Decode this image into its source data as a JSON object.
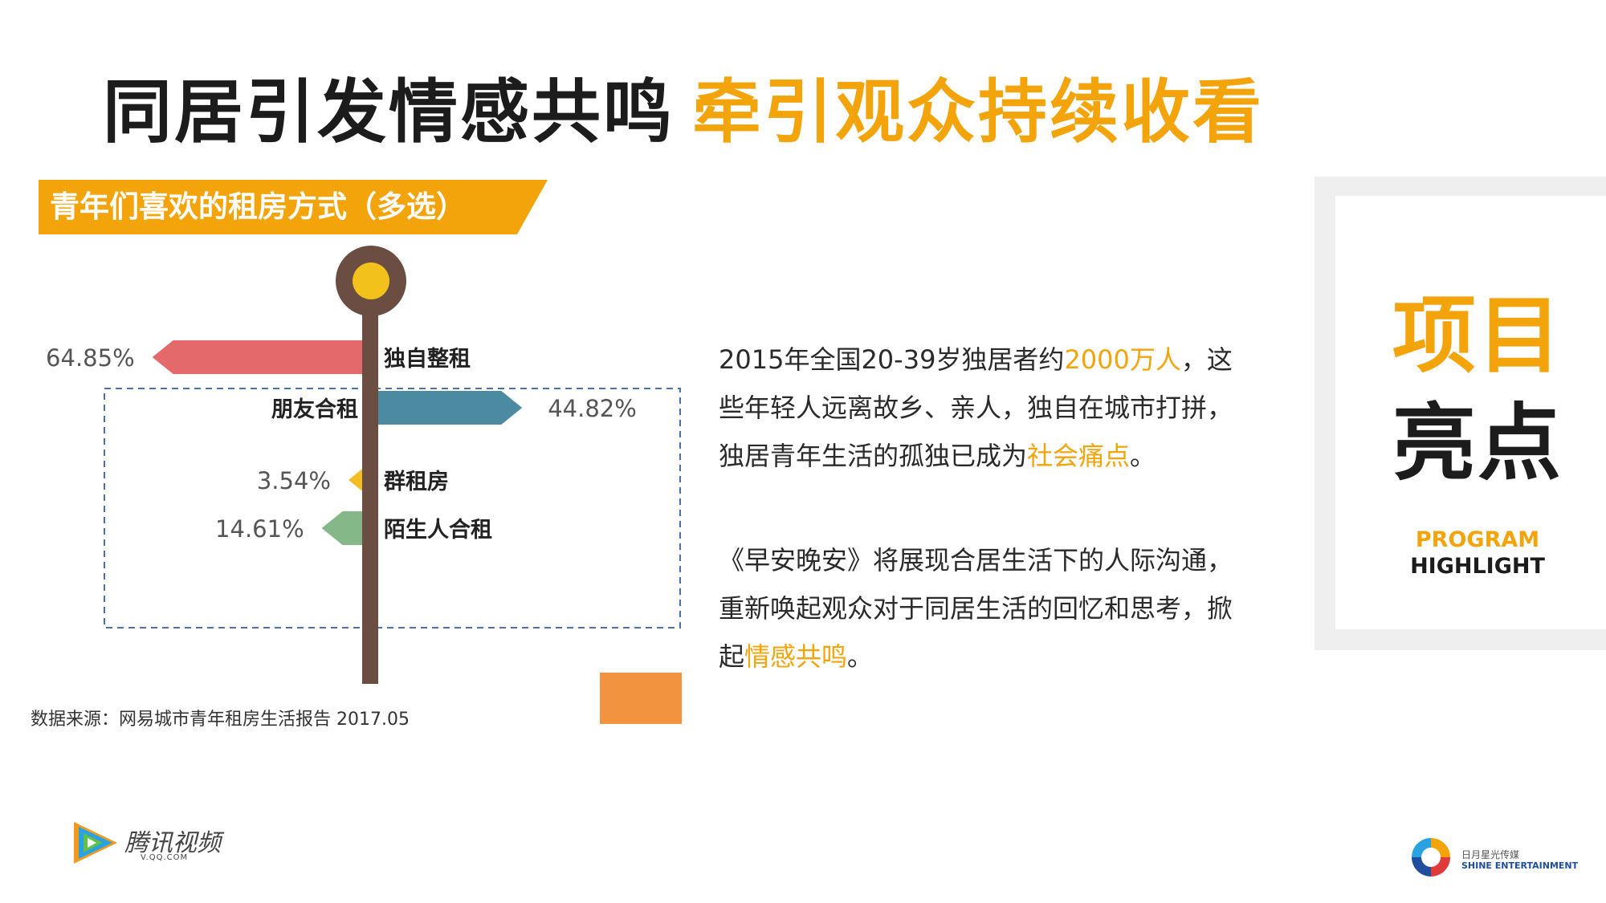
{
  "title": {
    "part1": "同居引发情感共鸣",
    "part2": "牵引观众持续收看"
  },
  "banner": {
    "label": "青年们喜欢的租房方式（多选）"
  },
  "chart_data": {
    "type": "bar",
    "title": "青年们喜欢的租房方式（多选）",
    "categories": [
      "独自整租",
      "朋友合租",
      "群租房",
      "陌生人合租"
    ],
    "values": [
      64.85,
      44.82,
      3.54,
      14.61
    ],
    "value_labels": [
      "64.85%",
      "44.82%",
      "3.54%",
      "14.61%"
    ],
    "unit": "%",
    "colors": [
      "#e4696b",
      "#4c8aa2",
      "#f3bd24",
      "#84b888"
    ]
  },
  "paragraph1": {
    "a": "2015年全国20-39岁独居者约",
    "b": "2000万人",
    "c": "，这",
    "line2": "些年轻人远离故乡、亲人，独自在城市打拼，",
    "d": "独居青年生活的孤独已成为",
    "e": "社会痛点",
    "f": "。"
  },
  "paragraph2": {
    "line1": "《早安晚安》将展现合居生活下的人际沟通，",
    "line2": "重新唤起观众对于同居生活的回忆和思考，掀",
    "a": "起",
    "b": "情感共鸣",
    "c": "。"
  },
  "highlight": {
    "word1": "项目",
    "word2": "亮点",
    "en1": "PROGRAM",
    "en2": "HIGHLIGHT"
  },
  "colors": {
    "accent": "#f3a40b",
    "dark": "#1c1c1c",
    "square": "#f29340"
  },
  "source": "数据来源：网易城市青年租房生活报告 2017.05",
  "logos": {
    "tencent": {
      "name": "腾讯视频",
      "url_text": "V.QQ.COM"
    },
    "shine": {
      "cn": "日月星光传媒",
      "en": "SHINE ENTERTAINMENT"
    }
  }
}
